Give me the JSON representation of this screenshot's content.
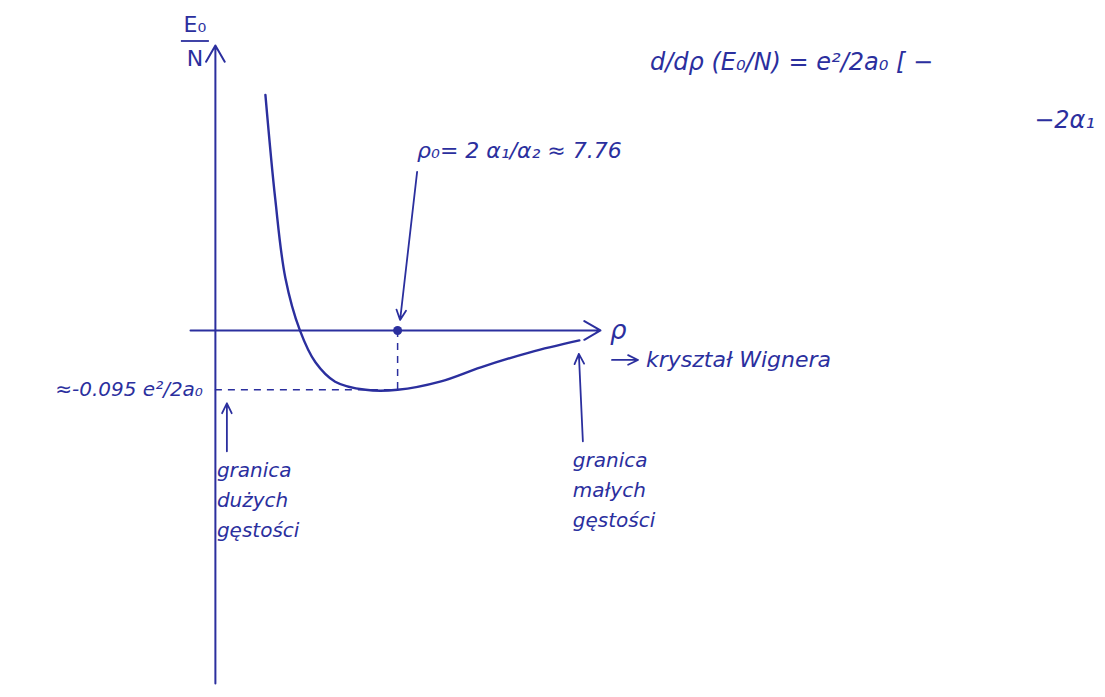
{
  "chart_data": {
    "type": "line",
    "y_label": "E₀/N",
    "x_label": "ρ",
    "x": [
      2.13,
      2.55,
      2.98,
      3.6,
      4.26,
      5.1,
      6.4,
      7.76,
      9.57,
      11.3,
      13.4,
      15.5
    ],
    "values": [
      0.377,
      0.21,
      0.084,
      0.0,
      -0.051,
      -0.082,
      -0.095,
      -0.095,
      -0.082,
      -0.059,
      -0.035,
      -0.016
    ],
    "color": "#2b2f9e",
    "xlim": [
      -1.06,
      16.4
    ],
    "ylim": [
      -0.565,
      0.456
    ],
    "tick_labels": false,
    "grid": false,
    "minimum": {
      "x": 7.76,
      "y": -0.095
    },
    "annotations": {
      "minimum_x": "ρ₀= 2 α₁/α₂ ≈ 7.76",
      "minimum_y": "≈-0.095 e²/2a₀",
      "right_end": "kryształ Wignera",
      "high_density": "granica dużych gęstości",
      "low_density": "granica małych gęstości",
      "formula": [
        "d/dρ (E₀/N) = e²/2a₀ [ −",
        "−2α₁"
      ]
    }
  }
}
